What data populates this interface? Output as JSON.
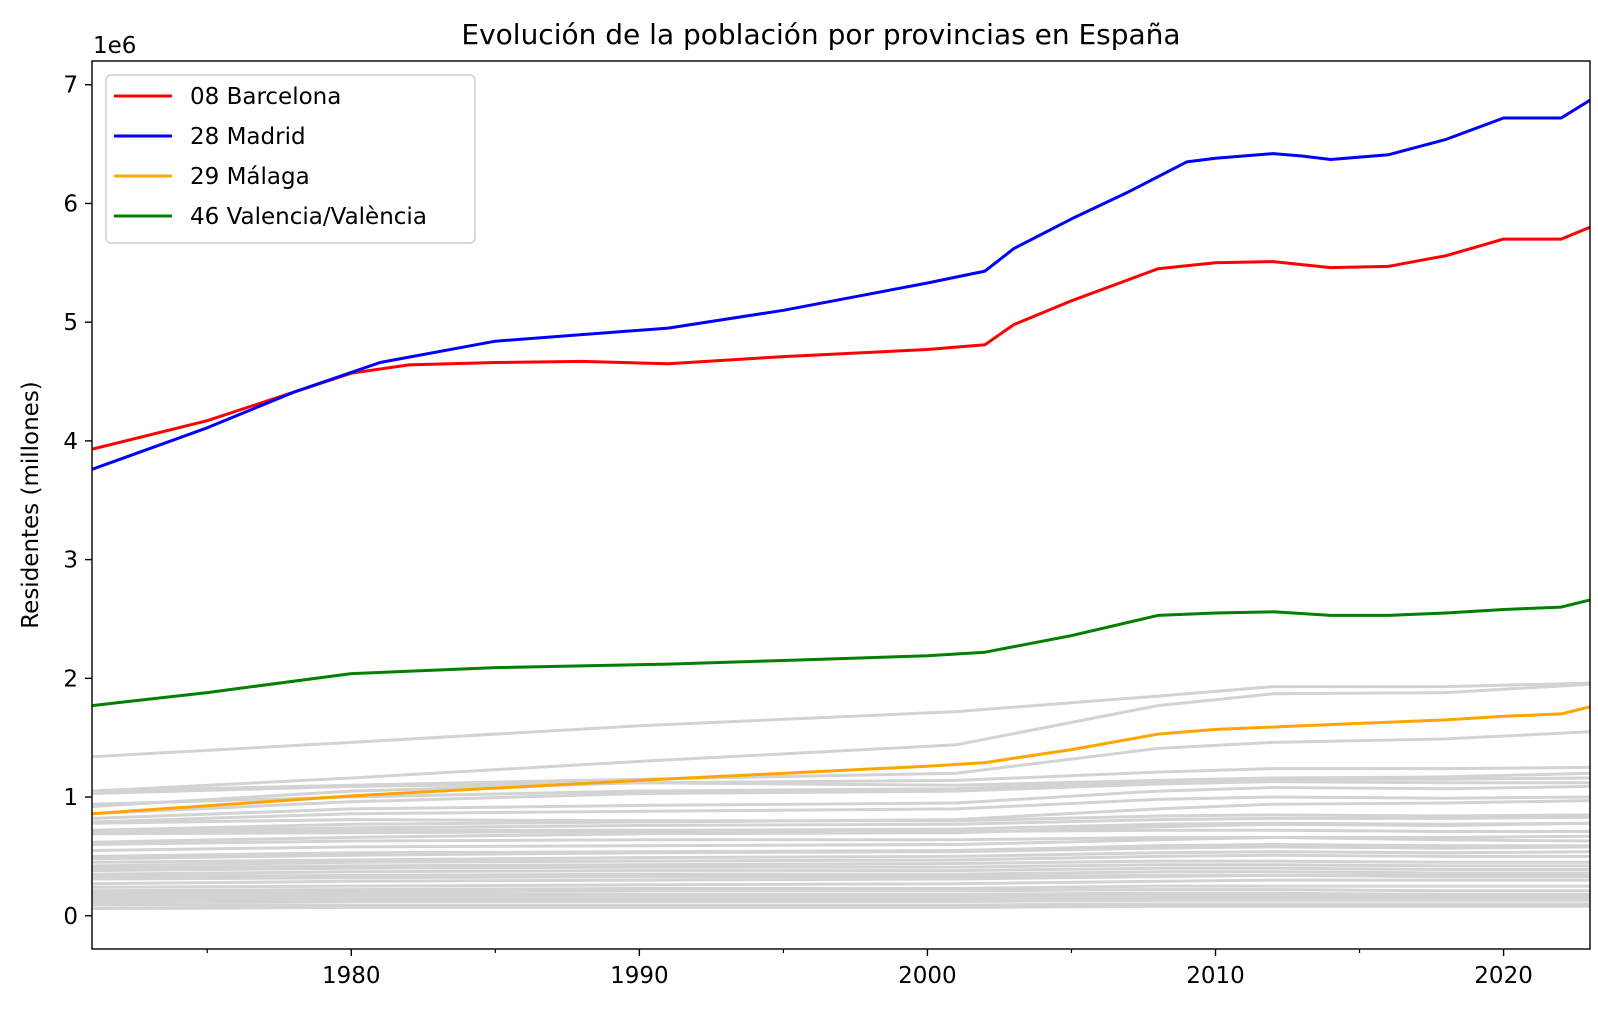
{
  "chart_data": {
    "type": "line",
    "title": "Evolución de la población por provincias en España",
    "xlabel": "",
    "ylabel": "Residentes (millones)",
    "y_offset_label": "1e6",
    "xlim": [
      1971,
      2023
    ],
    "ylim": [
      -0.28,
      7.2
    ],
    "x_ticks": [
      1980,
      1990,
      2000,
      2010,
      2020
    ],
    "x_minor_ticks": [
      1975,
      1985,
      1995,
      2005,
      2015
    ],
    "y_ticks": [
      0,
      1,
      2,
      3,
      4,
      5,
      6,
      7
    ],
    "grid": false,
    "legend_position": "upper-left",
    "highlighted_series": [
      {
        "name": "08 Barcelona",
        "color": "#ff0000",
        "points": [
          [
            1971,
            3.93
          ],
          [
            1975,
            4.17
          ],
          [
            1978,
            4.41
          ],
          [
            1980,
            4.57
          ],
          [
            1982,
            4.64
          ],
          [
            1985,
            4.66
          ],
          [
            1988,
            4.67
          ],
          [
            1991,
            4.65
          ],
          [
            1995,
            4.71
          ],
          [
            2000,
            4.77
          ],
          [
            2002,
            4.81
          ],
          [
            2003,
            4.98
          ],
          [
            2005,
            5.18
          ],
          [
            2008,
            5.45
          ],
          [
            2010,
            5.5
          ],
          [
            2012,
            5.51
          ],
          [
            2014,
            5.46
          ],
          [
            2016,
            5.47
          ],
          [
            2018,
            5.56
          ],
          [
            2020,
            5.7
          ],
          [
            2021,
            5.7
          ],
          [
            2022,
            5.7
          ],
          [
            2023,
            5.8
          ]
        ]
      },
      {
        "name": "28 Madrid",
        "color": "#0000ff",
        "points": [
          [
            1971,
            3.76
          ],
          [
            1975,
            4.11
          ],
          [
            1978,
            4.41
          ],
          [
            1981,
            4.66
          ],
          [
            1985,
            4.84
          ],
          [
            1991,
            4.95
          ],
          [
            1995,
            5.1
          ],
          [
            2000,
            5.33
          ],
          [
            2002,
            5.43
          ],
          [
            2003,
            5.62
          ],
          [
            2005,
            5.87
          ],
          [
            2007,
            6.1
          ],
          [
            2009,
            6.35
          ],
          [
            2010,
            6.38
          ],
          [
            2012,
            6.42
          ],
          [
            2013,
            6.4
          ],
          [
            2014,
            6.37
          ],
          [
            2016,
            6.41
          ],
          [
            2018,
            6.54
          ],
          [
            2020,
            6.72
          ],
          [
            2022,
            6.72
          ],
          [
            2023,
            6.87
          ]
        ]
      },
      {
        "name": "29 Málaga",
        "color": "#ffa500",
        "points": [
          [
            1971,
            0.86
          ],
          [
            1980,
            1.01
          ],
          [
            1990,
            1.14
          ],
          [
            2000,
            1.26
          ],
          [
            2002,
            1.29
          ],
          [
            2005,
            1.4
          ],
          [
            2008,
            1.53
          ],
          [
            2010,
            1.57
          ],
          [
            2015,
            1.62
          ],
          [
            2018,
            1.65
          ],
          [
            2020,
            1.68
          ],
          [
            2022,
            1.7
          ],
          [
            2023,
            1.76
          ]
        ]
      },
      {
        "name": "46 Valencia/València",
        "color": "#008000",
        "points": [
          [
            1971,
            1.77
          ],
          [
            1975,
            1.88
          ],
          [
            1980,
            2.04
          ],
          [
            1985,
            2.09
          ],
          [
            1991,
            2.12
          ],
          [
            1995,
            2.15
          ],
          [
            2000,
            2.19
          ],
          [
            2002,
            2.22
          ],
          [
            2005,
            2.36
          ],
          [
            2008,
            2.53
          ],
          [
            2010,
            2.55
          ],
          [
            2012,
            2.56
          ],
          [
            2014,
            2.53
          ],
          [
            2016,
            2.53
          ],
          [
            2018,
            2.55
          ],
          [
            2020,
            2.58
          ],
          [
            2022,
            2.6
          ],
          [
            2023,
            2.66
          ]
        ]
      }
    ],
    "background_series": {
      "color": "#d3d3d3",
      "points_x": [
        1971,
        1980,
        1990,
        2001,
        2008,
        2012,
        2018,
        2023
      ],
      "series_y": [
        [
          1.34,
          1.46,
          1.6,
          1.72,
          1.85,
          1.93,
          1.93,
          1.96
        ],
        [
          1.05,
          1.16,
          1.3,
          1.44,
          1.77,
          1.87,
          1.88,
          1.95
        ],
        [
          1.05,
          1.1,
          1.15,
          1.2,
          1.41,
          1.46,
          1.49,
          1.55
        ],
        [
          1.03,
          1.09,
          1.12,
          1.14,
          1.21,
          1.24,
          1.24,
          1.25
        ],
        [
          0.92,
          1.05,
          1.12,
          1.1,
          1.14,
          1.16,
          1.17,
          1.2
        ],
        [
          0.94,
          1.0,
          1.05,
          1.07,
          1.13,
          1.15,
          1.15,
          1.16
        ],
        [
          0.86,
          0.96,
          1.03,
          1.05,
          1.11,
          1.13,
          1.12,
          1.12
        ],
        [
          0.82,
          0.9,
          0.93,
          0.95,
          1.05,
          1.08,
          1.07,
          1.09
        ],
        [
          0.79,
          0.86,
          0.88,
          0.9,
          0.98,
          1.0,
          0.99,
          1.0
        ],
        [
          0.78,
          0.81,
          0.8,
          0.8,
          0.84,
          0.85,
          0.84,
          0.85
        ],
        [
          0.72,
          0.77,
          0.79,
          0.81,
          0.9,
          0.94,
          0.95,
          0.97
        ],
        [
          0.71,
          0.74,
          0.76,
          0.77,
          0.81,
          0.82,
          0.82,
          0.83
        ],
        [
          0.7,
          0.72,
          0.72,
          0.73,
          0.77,
          0.78,
          0.77,
          0.78
        ],
        [
          0.69,
          0.7,
          0.71,
          0.71,
          0.72,
          0.72,
          0.71,
          0.71
        ],
        [
          0.62,
          0.66,
          0.69,
          0.7,
          0.75,
          0.77,
          0.76,
          0.78
        ],
        [
          0.6,
          0.63,
          0.64,
          0.64,
          0.66,
          0.66,
          0.64,
          0.63
        ],
        [
          0.55,
          0.58,
          0.59,
          0.6,
          0.64,
          0.66,
          0.66,
          0.67
        ],
        [
          0.5,
          0.53,
          0.54,
          0.55,
          0.59,
          0.6,
          0.59,
          0.59
        ],
        [
          0.48,
          0.51,
          0.53,
          0.54,
          0.57,
          0.58,
          0.57,
          0.58
        ],
        [
          0.45,
          0.47,
          0.49,
          0.5,
          0.53,
          0.54,
          0.53,
          0.54
        ],
        [
          0.42,
          0.45,
          0.46,
          0.47,
          0.5,
          0.51,
          0.5,
          0.5
        ],
        [
          0.4,
          0.42,
          0.43,
          0.44,
          0.46,
          0.46,
          0.45,
          0.45
        ],
        [
          0.38,
          0.4,
          0.41,
          0.41,
          0.43,
          0.43,
          0.42,
          0.42
        ],
        [
          0.35,
          0.37,
          0.38,
          0.38,
          0.4,
          0.4,
          0.39,
          0.39
        ],
        [
          0.33,
          0.34,
          0.35,
          0.35,
          0.37,
          0.37,
          0.36,
          0.36
        ],
        [
          0.31,
          0.32,
          0.33,
          0.33,
          0.34,
          0.34,
          0.33,
          0.33
        ],
        [
          0.27,
          0.29,
          0.3,
          0.31,
          0.33,
          0.34,
          0.34,
          0.35
        ],
        [
          0.24,
          0.25,
          0.26,
          0.27,
          0.29,
          0.3,
          0.3,
          0.3
        ],
        [
          0.21,
          0.22,
          0.23,
          0.23,
          0.25,
          0.25,
          0.25,
          0.25
        ],
        [
          0.19,
          0.2,
          0.21,
          0.21,
          0.22,
          0.22,
          0.21,
          0.21
        ],
        [
          0.17,
          0.18,
          0.18,
          0.18,
          0.19,
          0.19,
          0.18,
          0.18
        ],
        [
          0.15,
          0.16,
          0.16,
          0.16,
          0.17,
          0.17,
          0.17,
          0.17
        ],
        [
          0.13,
          0.14,
          0.14,
          0.14,
          0.15,
          0.15,
          0.15,
          0.15
        ],
        [
          0.11,
          0.12,
          0.12,
          0.12,
          0.13,
          0.13,
          0.13,
          0.13
        ],
        [
          0.09,
          0.09,
          0.09,
          0.09,
          0.1,
          0.1,
          0.1,
          0.1
        ],
        [
          0.06,
          0.07,
          0.07,
          0.07,
          0.08,
          0.08,
          0.08,
          0.08
        ]
      ]
    }
  }
}
